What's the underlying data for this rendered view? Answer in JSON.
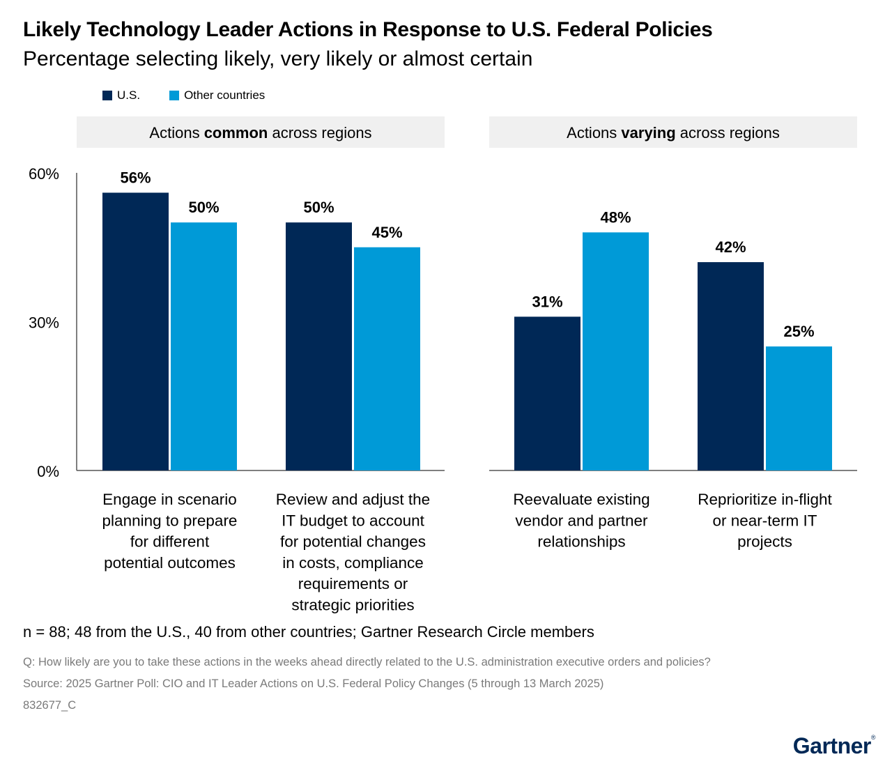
{
  "header": {
    "title": "Likely Technology Leader Actions in Response to U.S. Federal Policies",
    "subtitle": "Percentage selecting likely, very likely or almost certain"
  },
  "legend": {
    "items": [
      {
        "label": "U.S.",
        "color": "#002856"
      },
      {
        "label": "Other countries",
        "color": "#009ad7"
      }
    ]
  },
  "chart_data": {
    "type": "bar",
    "ylim": [
      0,
      60
    ],
    "yticks": [
      0,
      30,
      60
    ],
    "ytick_labels": [
      "0%",
      "30%",
      "60%"
    ],
    "grid": false,
    "legend_position": "top-left",
    "series": [
      {
        "name": "U.S.",
        "color": "#002856",
        "values": [
          56,
          50,
          31,
          42
        ]
      },
      {
        "name": "Other countries",
        "color": "#009ad7",
        "values": [
          50,
          45,
          48,
          25
        ]
      }
    ],
    "value_labels": [
      [
        "56%",
        "50%",
        "31%",
        "42%"
      ],
      [
        "50%",
        "45%",
        "48%",
        "25%"
      ]
    ],
    "panels": [
      {
        "header_pre": "Actions ",
        "header_bold": "common",
        "header_post": " across regions",
        "categories": [
          [
            "Engage in scenario",
            "planning to prepare",
            "for different",
            "potential outcomes"
          ],
          [
            "Review and adjust the",
            "IT budget to account",
            "for potential changes",
            "in costs, compliance",
            "requirements or",
            "strategic priorities"
          ]
        ],
        "category_indices": [
          0,
          1
        ]
      },
      {
        "header_pre": "Actions ",
        "header_bold": "varying",
        "header_post": " across regions",
        "categories": [
          [
            "Reevaluate existing",
            "vendor and partner",
            "relationships"
          ],
          [
            "Reprioritize in-flight",
            "or near-term IT",
            "projects"
          ]
        ],
        "category_indices": [
          2,
          3
        ]
      }
    ]
  },
  "notes": {
    "sample": "n = 88; 48 from the U.S., 40 from other countries; Gartner Research Circle members",
    "question": "Q: How likely are you to take these actions in the weeks ahead directly related to the U.S. administration executive orders and policies?",
    "source": "Source: 2025 Gartner Poll: CIO and IT Leader Actions on U.S. Federal Policy Changes (5 through 13 March 2025)",
    "id": "832677_C"
  },
  "brand": {
    "name": "Gartner"
  }
}
